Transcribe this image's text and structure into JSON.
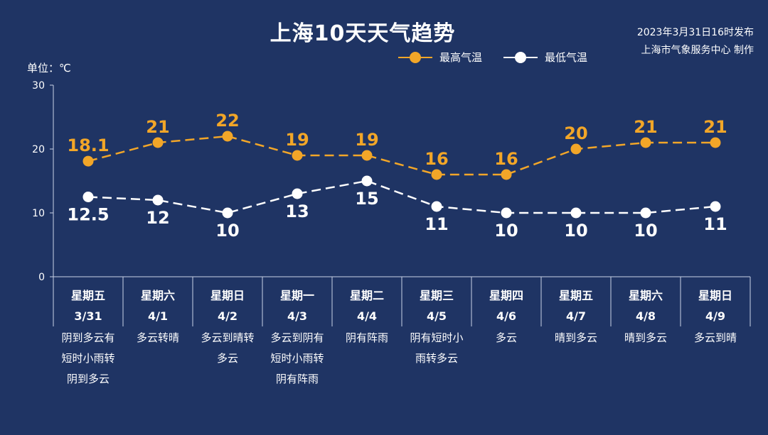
{
  "header": {
    "title": "上海10天天气趋势",
    "publish_line1": "2023年3月31日16时发布",
    "publish_line2": "上海市气象服务中心 制作",
    "unit": "单位：℃"
  },
  "colors": {
    "background": "#1f3464",
    "high": "#f2a628",
    "low": "#ffffff",
    "axis": "#c8d2e6"
  },
  "chart_data": {
    "type": "line",
    "ylim": [
      0,
      30
    ],
    "yticks": [
      0,
      10,
      20,
      30
    ],
    "legend_position": "top-center",
    "categories": [
      {
        "weekday": "星期五",
        "date": "3/31",
        "weather": [
          "阴到多云有",
          "短时小雨转",
          "阴到多云"
        ]
      },
      {
        "weekday": "星期六",
        "date": "4/1",
        "weather": [
          "多云转晴"
        ]
      },
      {
        "weekday": "星期日",
        "date": "4/2",
        "weather": [
          "多云到晴转",
          "多云"
        ]
      },
      {
        "weekday": "星期一",
        "date": "4/3",
        "weather": [
          "多云到阴有",
          "短时小雨转",
          "阴有阵雨"
        ]
      },
      {
        "weekday": "星期二",
        "date": "4/4",
        "weather": [
          "阴有阵雨"
        ]
      },
      {
        "weekday": "星期三",
        "date": "4/5",
        "weather": [
          "阴有短时小",
          "雨转多云"
        ]
      },
      {
        "weekday": "星期四",
        "date": "4/6",
        "weather": [
          "多云"
        ]
      },
      {
        "weekday": "星期五",
        "date": "4/7",
        "weather": [
          "晴到多云"
        ]
      },
      {
        "weekday": "星期六",
        "date": "4/8",
        "weather": [
          "晴到多云"
        ]
      },
      {
        "weekday": "星期日",
        "date": "4/9",
        "weather": [
          "多云到晴"
        ]
      }
    ],
    "series": [
      {
        "name": "最高气温",
        "values": [
          18.1,
          21,
          22,
          19,
          19,
          16,
          16,
          20,
          21,
          21
        ],
        "labels": [
          "18.1",
          "21",
          "22",
          "19",
          "19",
          "16",
          "16",
          "20",
          "21",
          "21"
        ]
      },
      {
        "name": "最低气温",
        "values": [
          12.5,
          12,
          10,
          13,
          15,
          11,
          10,
          10,
          10,
          11
        ],
        "labels": [
          "12.5",
          "12",
          "10",
          "13",
          "15",
          "11",
          "10",
          "10",
          "10",
          "11"
        ]
      }
    ]
  }
}
